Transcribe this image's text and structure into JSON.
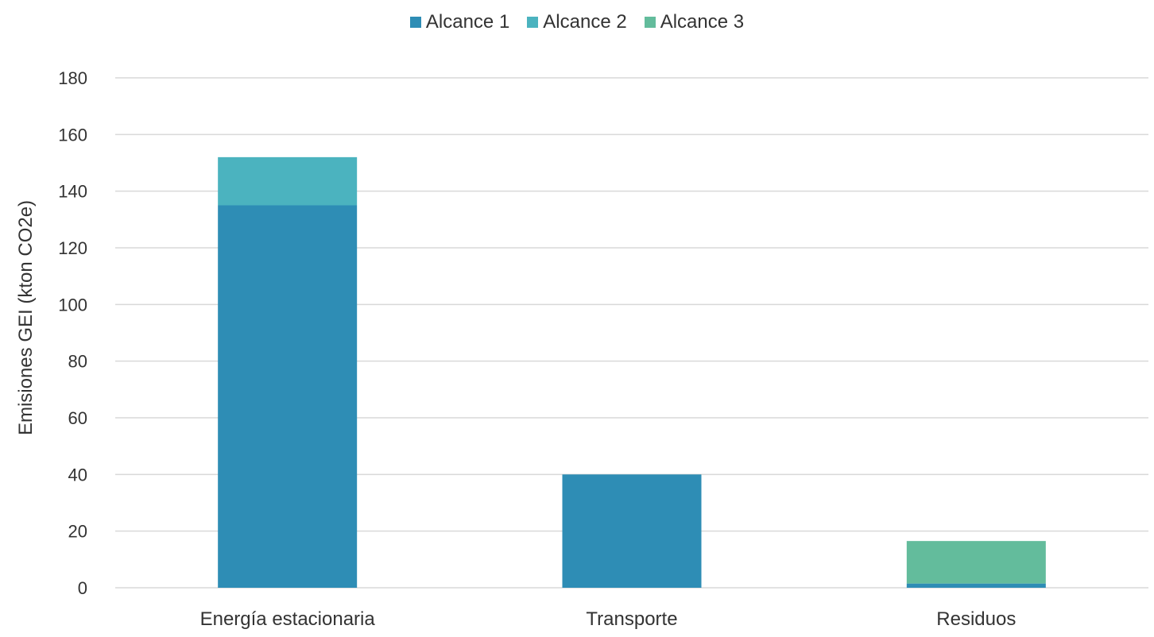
{
  "chart_data": {
    "type": "bar",
    "stacked": true,
    "categories": [
      "Energía estacionaria",
      "Transporte",
      "Residuos"
    ],
    "series": [
      {
        "name": "Alcance 1",
        "color": "#2E8DB5",
        "values": [
          135,
          40,
          1.5
        ]
      },
      {
        "name": "Alcance 2",
        "color": "#4BB3BF",
        "values": [
          17,
          0,
          0
        ]
      },
      {
        "name": "Alcance 3",
        "color": "#63BC9C",
        "values": [
          0,
          0,
          15
        ]
      }
    ],
    "ylabel": "Emisiones GEI (kton CO2e)",
    "xlabel": "",
    "ylim": [
      0,
      180
    ],
    "yticks": [
      0,
      20,
      40,
      60,
      80,
      100,
      120,
      140,
      160,
      180
    ],
    "grid": true,
    "legend_position": "top-center",
    "gridline_color": "#d9d9d9"
  }
}
